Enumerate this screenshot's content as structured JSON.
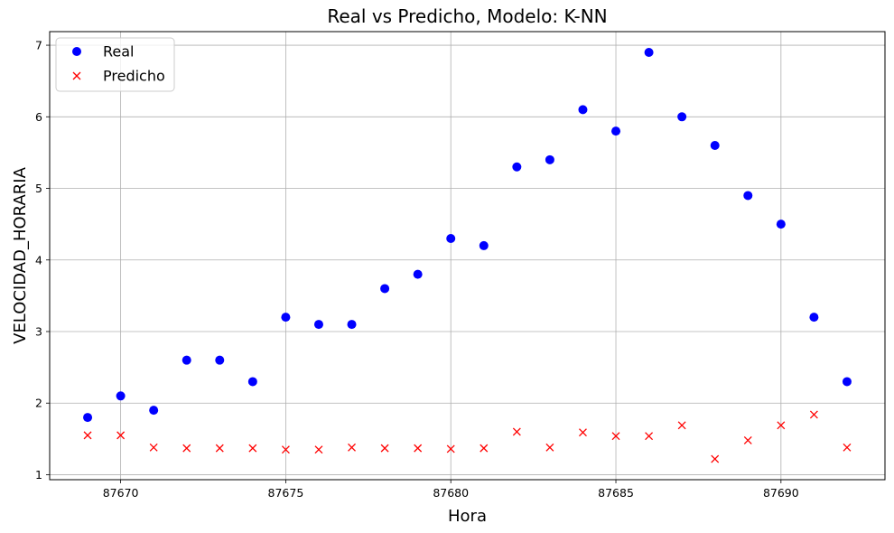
{
  "chart_data": {
    "type": "scatter",
    "title": "Real vs Predicho, Modelo: K-NN",
    "xlabel": "Hora",
    "ylabel": "VELOCIDAD_HORARIA",
    "xlim": [
      87667.85,
      87693.15
    ],
    "ylim": [
      0.93,
      7.19
    ],
    "xticks": [
      87670,
      87675,
      87680,
      87685,
      87690
    ],
    "yticks": [
      1,
      2,
      3,
      4,
      5,
      6,
      7
    ],
    "grid": true,
    "legend_position": "top-left",
    "x": [
      87669,
      87670,
      87671,
      87672,
      87673,
      87674,
      87675,
      87676,
      87677,
      87678,
      87679,
      87680,
      87681,
      87682,
      87683,
      87684,
      87685,
      87686,
      87687,
      87688,
      87689,
      87690,
      87691,
      87692
    ],
    "series": [
      {
        "name": "Real",
        "marker": "circle",
        "color": "#0000ff",
        "values": [
          1.8,
          2.1,
          1.9,
          2.6,
          2.6,
          2.3,
          3.2,
          3.1,
          3.1,
          3.6,
          3.8,
          4.3,
          4.2,
          5.3,
          5.4,
          6.1,
          5.8,
          6.9,
          6.0,
          5.6,
          4.9,
          4.5,
          3.2,
          2.3
        ]
      },
      {
        "name": "Predicho",
        "marker": "x",
        "color": "#ff0000",
        "values": [
          1.55,
          1.55,
          1.38,
          1.37,
          1.37,
          1.37,
          1.35,
          1.35,
          1.38,
          1.37,
          1.37,
          1.36,
          1.37,
          1.6,
          1.38,
          1.59,
          1.54,
          1.54,
          1.69,
          1.22,
          1.48,
          1.69,
          1.84,
          1.38
        ]
      }
    ]
  }
}
